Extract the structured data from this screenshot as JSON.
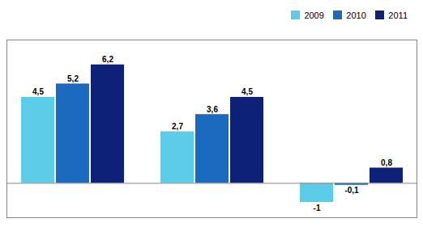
{
  "chart_data": {
    "type": "bar",
    "categories": [
      null,
      null,
      null
    ],
    "series": [
      {
        "name": "2009",
        "color": "#5bcde8",
        "values": [
          4.5,
          2.7,
          -1.0
        ],
        "value_labels": [
          "4,5",
          "2,7",
          "-1"
        ]
      },
      {
        "name": "2010",
        "color": "#1a6bbf",
        "values": [
          5.2,
          3.6,
          -0.1
        ],
        "value_labels": [
          "5,2",
          "3,6",
          "-0,1"
        ]
      },
      {
        "name": "2011",
        "color": "#0d2178",
        "values": [
          6.2,
          4.5,
          0.8
        ],
        "value_labels": [
          "6,2",
          "4,5",
          "0,8"
        ]
      }
    ],
    "ylim": [
      -1.8,
      7.5
    ],
    "yticks": [],
    "grid": false,
    "tick_labels": false,
    "legend": "upper right",
    "data_labels": true
  }
}
